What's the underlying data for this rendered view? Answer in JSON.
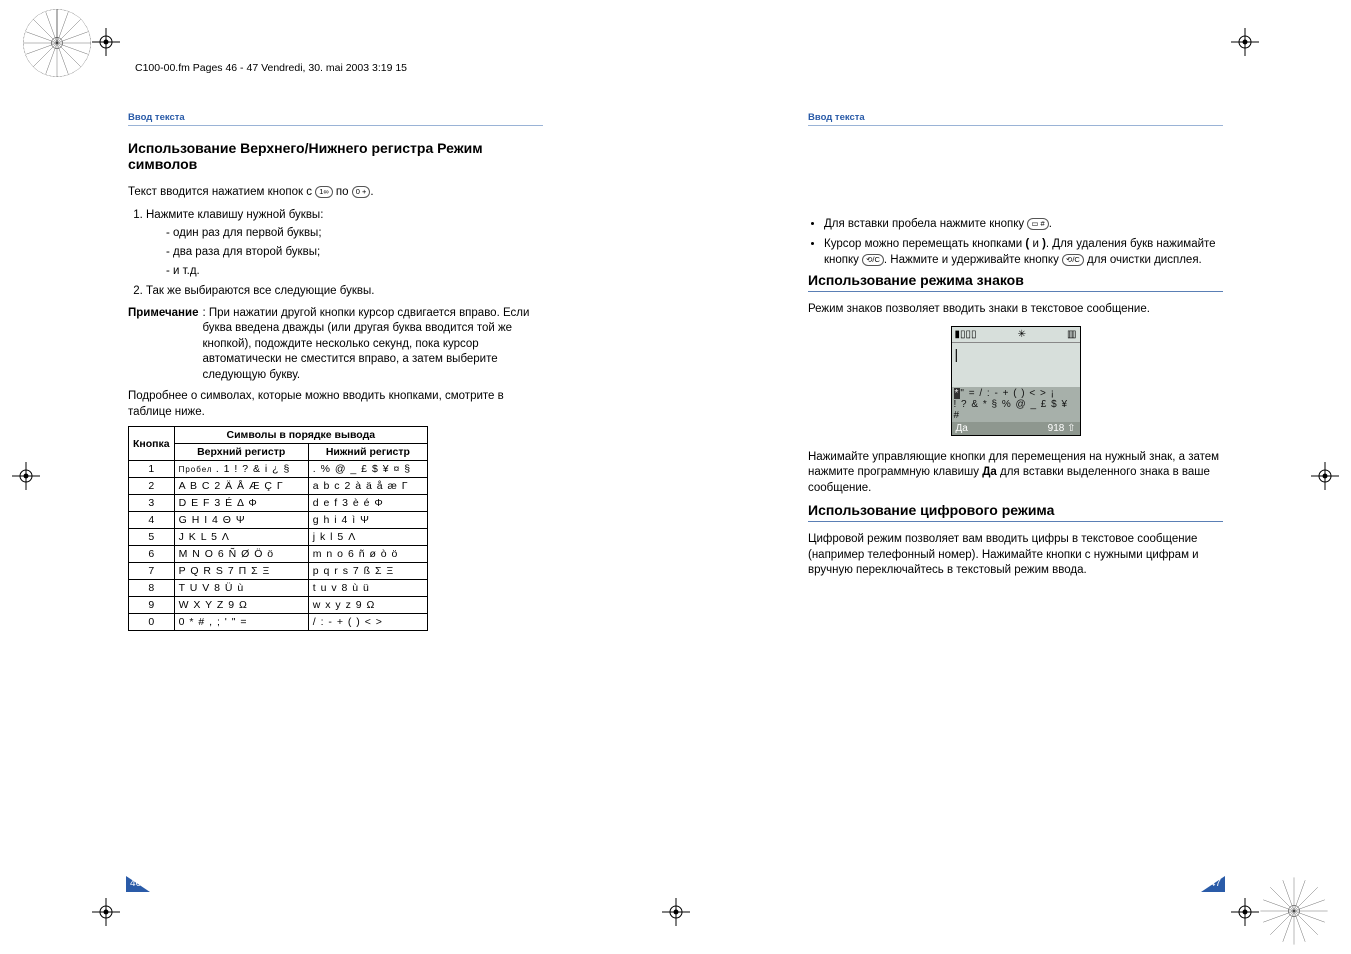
{
  "header_line": "C100-00.fm  Pages 46 - 47  Vendredi, 30. mai 2003  3:19 15",
  "running_head": "Ввод текста",
  "left": {
    "title": "Использование Верхнего/Нижнего регистра Режим символов",
    "intro": "Текст вводится нажатием кнопок с",
    "intro_mid": "по",
    "key_from": "1∞",
    "key_to": "0 +",
    "step1": "Нажмите клавишу нужной буквы:",
    "sub1": "- один раз для первой буквы;",
    "sub2": "- два раза для второй буквы;",
    "sub3": "- и т.д.",
    "step2": "Так же выбираются все следующие буквы.",
    "note_label": "Примечание",
    "note_text": ": При нажатии другой кнопки курсор сдвигается вправо. Если буква введена дважды (или другая буква вводится той же кнопкой), подождите несколько секунд, пока курсор автоматически не сместится вправо, а затем выберите следующую букву.",
    "below": "Подробнее о символах, которые можно вводить кнопками, смотрите в таблице ниже.",
    "table": {
      "h_key": "Кнопка",
      "h_order": "Символы в порядке вывода",
      "h_upper": "Верхний регистр",
      "h_lower": "Нижний регистр",
      "space_label": "Пробел",
      "rows": [
        {
          "k": "1",
          "u": ". 1 ! ? & i ¿ §",
          "l": ". % @ _ £ $ ¥ ¤ §"
        },
        {
          "k": "2",
          "u": "A B C 2 Ä Å Æ Ç Γ",
          "l": "a b c 2 à ä å æ Γ"
        },
        {
          "k": "3",
          "u": "D E F 3 É Δ Φ",
          "l": "d e f 3 è é Φ"
        },
        {
          "k": "4",
          "u": "G H I 4 Θ Ψ",
          "l": "g h i 4 ì Ψ"
        },
        {
          "k": "5",
          "u": "J K L 5 Λ",
          "l": "j k l 5 Λ"
        },
        {
          "k": "6",
          "u": "M N O 6 Ñ Ø Ö ö",
          "l": "m n o 6 ñ ø ò ö"
        },
        {
          "k": "7",
          "u": "P Q R S 7 Π Σ Ξ",
          "l": "p q r s 7 ß Σ Ξ"
        },
        {
          "k": "8",
          "u": "T U V 8 Ü ù",
          "l": "t u v 8 ù ü"
        },
        {
          "k": "9",
          "u": "W X Y Z 9 Ω",
          "l": "w x y z 9 Ω"
        },
        {
          "k": "0",
          "u": "0 * # , ; ' \" =",
          "l": "/ : - + ( ) < >"
        }
      ]
    }
  },
  "right": {
    "bullet1_a": "Для вставки пробела нажмите кнопку",
    "key_space": "▭ #",
    "bullet2_a": "Курсор можно перемещать кнопками",
    "bullet2_b": "и",
    "bullet2_c": ". Для удаления букв нажимайте кнопку",
    "bullet2_d": ". Нажмите и удерживайте кнопку",
    "bullet2_e": "для очистки дисплея.",
    "key_left": "(",
    "key_right": ")",
    "key_c": "⟲/C",
    "title2": "Использование режима знаков",
    "para2": "Режим знаков позволяет вводить знаки в текстовое сообщение.",
    "phone": {
      "cursor": "|",
      "sym1a": "*",
      "sym1b": "\" = / : - + ( ) < > ¡",
      "sym2": "! ? & * § % @ _ £ $ ¥ #",
      "soft_left": "Да",
      "soft_right": "918 ⇧"
    },
    "para3a": "Нажимайте управляющие кнопки для перемещения на нужный знак, а затем нажмите программную клавишу ",
    "para3bold": "Да",
    "para3b": " для вставки выделенного знака в ваше сообщение.",
    "title3": "Использование цифрового режима",
    "para4": "Цифровой режим позволяет вам вводить цифры в текстовое сообщение (например телефонный номер). Нажимайте кнопки с нужными цифрам и вручную переключайтесь в текстовый режим ввода."
  },
  "page_left_no": "46",
  "page_right_no": "47"
}
